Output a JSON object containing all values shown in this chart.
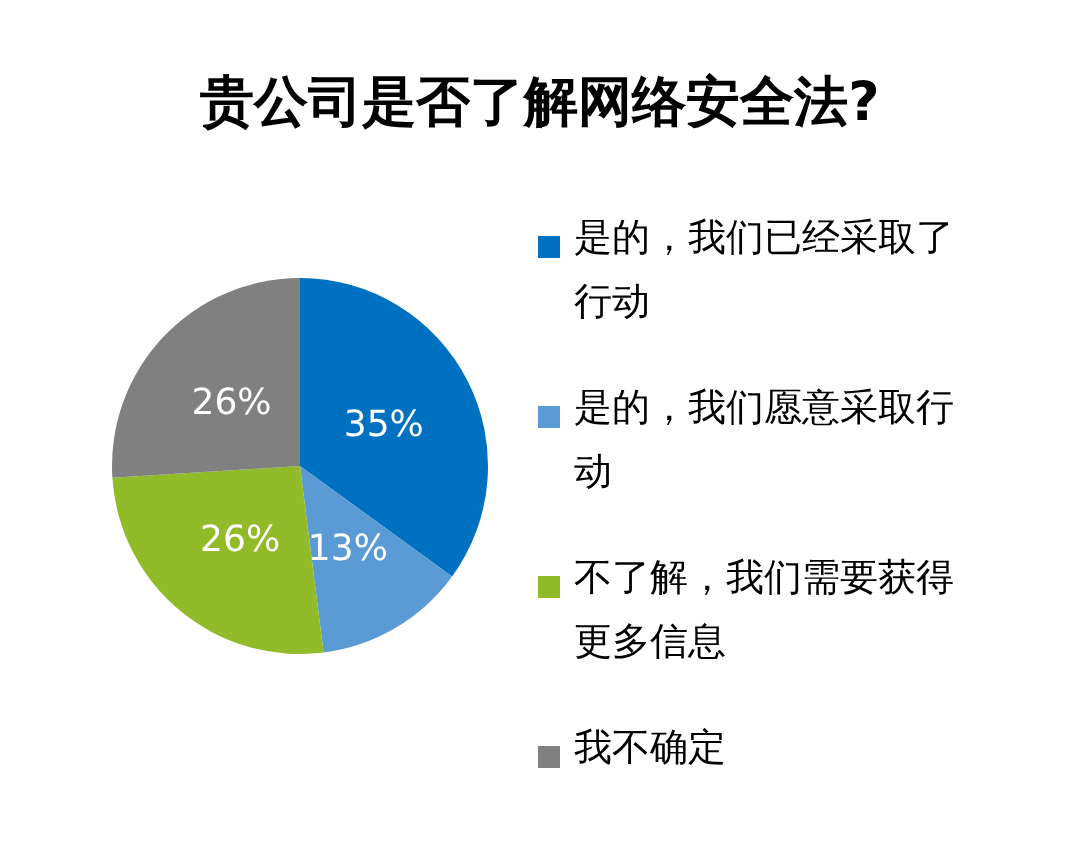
{
  "chart_data": {
    "type": "pie",
    "title": "贵公司是否了解网络安全法?",
    "categories": [
      "是的，我们已经采取了行动",
      "是的，我们愿意采取行动",
      "不了解，我们需要获得更多信息",
      "我不确定"
    ],
    "values": [
      35,
      13,
      26,
      26
    ],
    "colors": [
      "#0070c0",
      "#5b9bd5",
      "#92bb2a",
      "#808080"
    ],
    "value_labels": [
      "35%",
      "13%",
      "26%",
      "26%"
    ],
    "legend": "right"
  }
}
